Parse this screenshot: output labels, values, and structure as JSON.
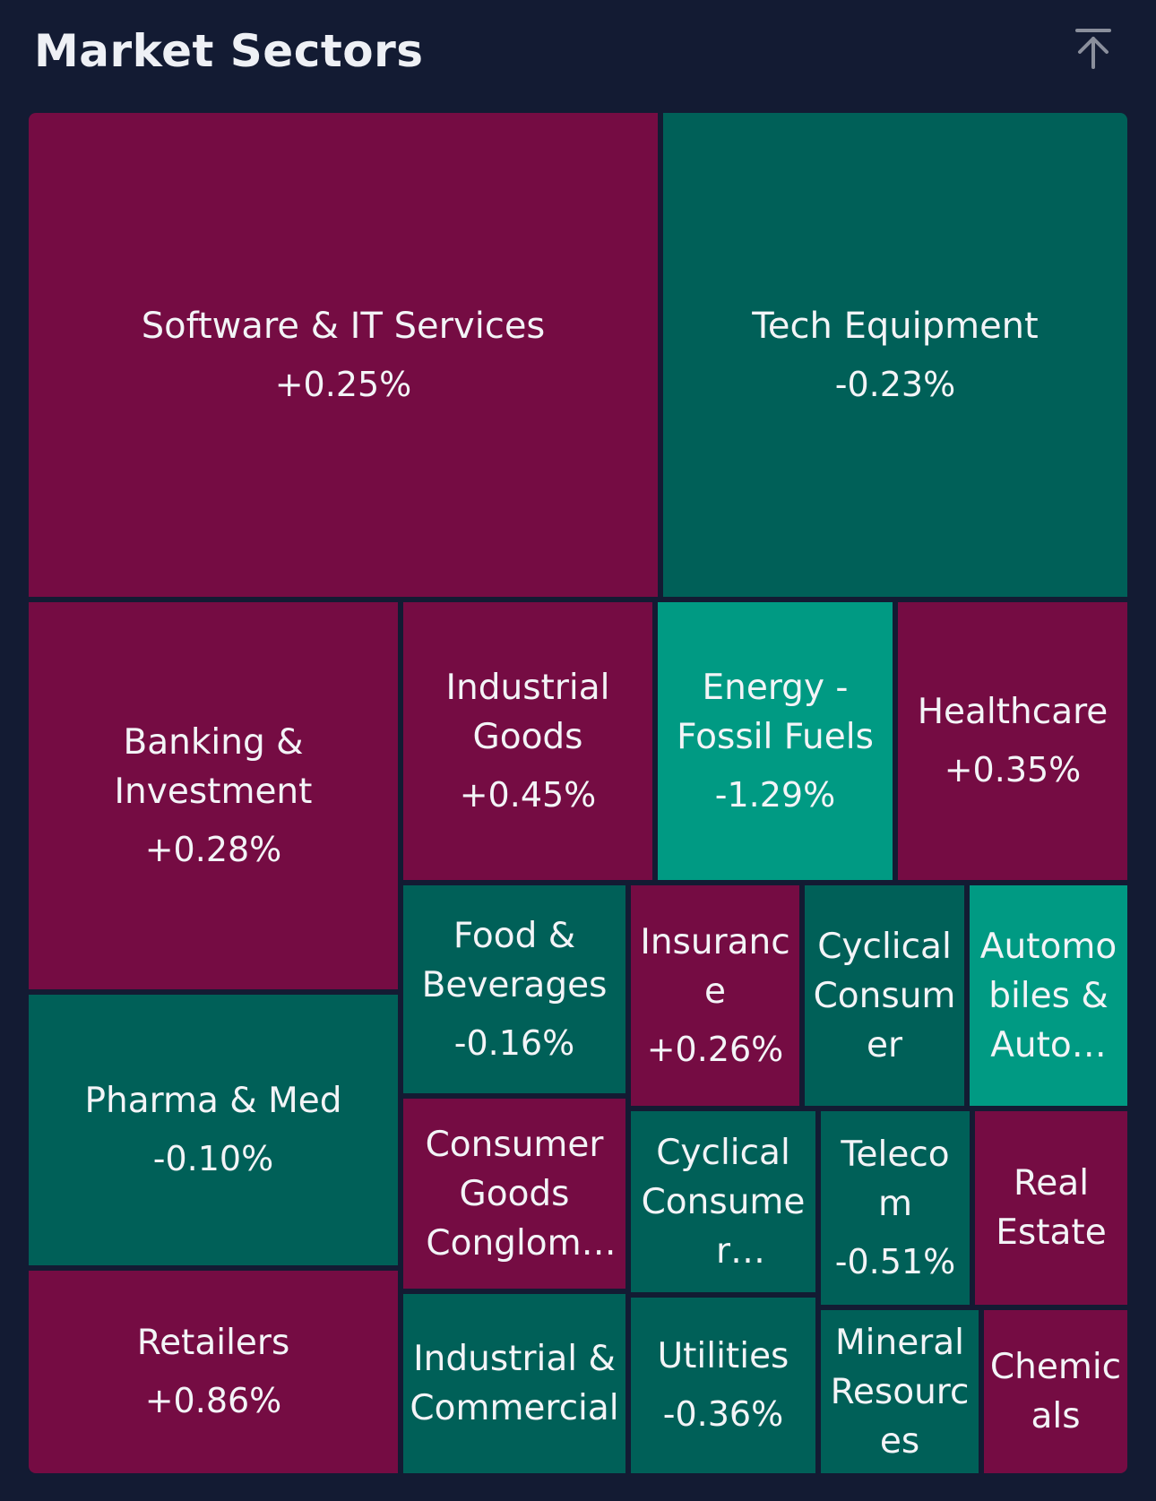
{
  "header": {
    "title": "Market Sectors",
    "scroll_top_icon": "arrow-up-to-top-icon"
  },
  "colors": {
    "background": "#131b33",
    "gain": "#750c43",
    "loss": "#006058",
    "strong_loss": "#009a83",
    "text": "#f3f4f7"
  },
  "sectors": [
    {
      "name": "Software & IT Services",
      "change": "+0.25%"
    },
    {
      "name": "Tech Equipment",
      "change": "-0.23%"
    },
    {
      "name": "Banking & Investment",
      "change": "+0.28%"
    },
    {
      "name": "Industrial Goods",
      "change": "+0.45%"
    },
    {
      "name": "Energy - Fossil Fuels",
      "change": "-1.29%"
    },
    {
      "name": "Healthcare",
      "change": "+0.35%"
    },
    {
      "name": "Food & Beverages",
      "change": "-0.16%"
    },
    {
      "name": "Insurance",
      "change": "+0.26%"
    },
    {
      "name": "Cyclical Consumer",
      "change": ""
    },
    {
      "name": "Automobiles & Auto…",
      "change": ""
    },
    {
      "name": "Pharma & Med",
      "change": "-0.10%"
    },
    {
      "name": "Consumer Goods Conglome…",
      "change": ""
    },
    {
      "name": "Cyclical Consumer Products",
      "change": ""
    },
    {
      "name": "Telecom",
      "change": "-0.51%"
    },
    {
      "name": "Real Estate",
      "change": ""
    },
    {
      "name": "Retailers",
      "change": "+0.86%"
    },
    {
      "name": "Industrial & Commercial",
      "change": ""
    },
    {
      "name": "Utilities",
      "change": "-0.36%"
    },
    {
      "name": "Mineral Resources",
      "change": ""
    },
    {
      "name": "Chemicals",
      "change": ""
    }
  ]
}
